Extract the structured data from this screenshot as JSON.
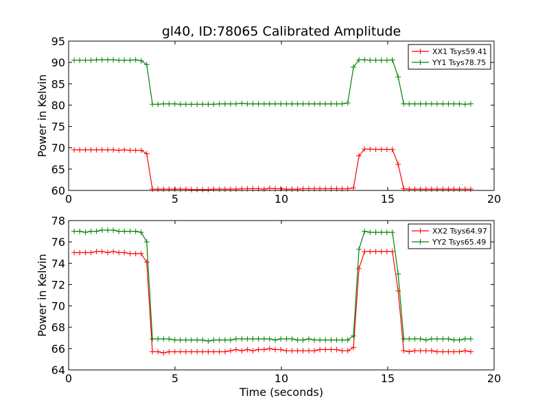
{
  "figure": {
    "title": "gl40, ID:78065 Calibrated Amplitude",
    "xlabel": "Time (seconds)"
  },
  "chart_data": [
    {
      "type": "line",
      "title": "gl40, ID:78065 Calibrated Amplitude",
      "xlabel": "",
      "ylabel": "Power in Kelvin",
      "xlim": [
        0,
        20
      ],
      "ylim": [
        60,
        95
      ],
      "xticks": [
        0,
        5,
        10,
        15,
        20
      ],
      "yticks": [
        60,
        65,
        70,
        75,
        80,
        85,
        90,
        95
      ],
      "grid": false,
      "legend_position": "top-right",
      "x": [
        0.26,
        0.52,
        0.79,
        1.05,
        1.31,
        1.57,
        1.84,
        2.1,
        2.36,
        2.62,
        2.89,
        3.15,
        3.41,
        3.67,
        3.94,
        4.2,
        4.46,
        4.72,
        4.99,
        5.25,
        5.51,
        5.77,
        6.04,
        6.3,
        6.56,
        6.82,
        7.09,
        7.35,
        7.61,
        7.87,
        8.14,
        8.4,
        8.66,
        8.92,
        9.19,
        9.45,
        9.71,
        9.97,
        10.24,
        10.5,
        10.76,
        11.02,
        11.29,
        11.55,
        11.81,
        12.07,
        12.34,
        12.6,
        12.86,
        13.12,
        13.39,
        13.65,
        13.91,
        14.17,
        14.44,
        14.7,
        14.96,
        15.22,
        15.49,
        15.75,
        16.01,
        16.27,
        16.54,
        16.8,
        17.06,
        17.32,
        17.59,
        17.85,
        18.11,
        18.37,
        18.64,
        18.9
      ],
      "series": [
        {
          "name": "XX1 Tsys59.41",
          "color": "#ff0000",
          "values": [
            69.5,
            69.5,
            69.5,
            69.5,
            69.5,
            69.5,
            69.5,
            69.5,
            69.4,
            69.5,
            69.4,
            69.4,
            69.4,
            68.6,
            60.3,
            60.3,
            60.3,
            60.3,
            60.3,
            60.3,
            60.3,
            60.2,
            60.2,
            60.2,
            60.2,
            60.3,
            60.3,
            60.3,
            60.3,
            60.3,
            60.4,
            60.4,
            60.4,
            60.4,
            60.3,
            60.5,
            60.4,
            60.4,
            60.3,
            60.3,
            60.3,
            60.4,
            60.4,
            60.4,
            60.4,
            60.4,
            60.4,
            60.4,
            60.4,
            60.4,
            60.6,
            68.1,
            69.7,
            69.7,
            69.6,
            69.6,
            69.6,
            69.6,
            66.1,
            60.4,
            60.3,
            60.3,
            60.3,
            60.3,
            60.3,
            60.3,
            60.3,
            60.3,
            60.3,
            60.3,
            60.3,
            60.3
          ]
        },
        {
          "name": "YY1 Tsys78.75",
          "color": "#008000",
          "values": [
            90.5,
            90.5,
            90.5,
            90.5,
            90.6,
            90.6,
            90.6,
            90.6,
            90.5,
            90.5,
            90.5,
            90.6,
            90.4,
            89.5,
            80.2,
            80.2,
            80.3,
            80.3,
            80.3,
            80.2,
            80.2,
            80.2,
            80.2,
            80.2,
            80.2,
            80.2,
            80.3,
            80.3,
            80.3,
            80.3,
            80.4,
            80.3,
            80.3,
            80.3,
            80.3,
            80.3,
            80.3,
            80.3,
            80.3,
            80.3,
            80.3,
            80.3,
            80.3,
            80.3,
            80.3,
            80.3,
            80.3,
            80.3,
            80.3,
            80.5,
            88.9,
            90.6,
            90.6,
            90.5,
            90.5,
            90.5,
            90.5,
            90.6,
            86.6,
            80.3,
            80.3,
            80.3,
            80.3,
            80.3,
            80.3,
            80.3,
            80.3,
            80.3,
            80.3,
            80.3,
            80.2,
            80.3
          ]
        }
      ]
    },
    {
      "type": "line",
      "title": "",
      "xlabel": "Time (seconds)",
      "ylabel": "Power in Kelvin",
      "xlim": [
        0,
        20
      ],
      "ylim": [
        64,
        78
      ],
      "xticks": [
        0,
        5,
        10,
        15,
        20
      ],
      "yticks": [
        64,
        66,
        68,
        70,
        72,
        74,
        76,
        78
      ],
      "grid": false,
      "legend_position": "top-right",
      "x": [
        0.26,
        0.52,
        0.79,
        1.05,
        1.31,
        1.57,
        1.84,
        2.1,
        2.36,
        2.62,
        2.89,
        3.15,
        3.41,
        3.67,
        3.94,
        4.2,
        4.46,
        4.72,
        4.99,
        5.25,
        5.51,
        5.77,
        6.04,
        6.3,
        6.56,
        6.82,
        7.09,
        7.35,
        7.61,
        7.87,
        8.14,
        8.4,
        8.66,
        8.92,
        9.19,
        9.45,
        9.71,
        9.97,
        10.24,
        10.5,
        10.76,
        11.02,
        11.29,
        11.55,
        11.81,
        12.07,
        12.34,
        12.6,
        12.86,
        13.12,
        13.39,
        13.65,
        13.91,
        14.17,
        14.44,
        14.7,
        14.96,
        15.22,
        15.49,
        15.75,
        16.01,
        16.27,
        16.54,
        16.8,
        17.06,
        17.32,
        17.59,
        17.85,
        18.11,
        18.37,
        18.64,
        18.9
      ],
      "series": [
        {
          "name": "XX2 Tsys64.97",
          "color": "#ff0000",
          "values": [
            75.0,
            75.0,
            75.0,
            75.0,
            75.1,
            75.1,
            75.0,
            75.1,
            75.0,
            75.0,
            74.9,
            74.9,
            74.9,
            74.1,
            65.7,
            65.7,
            65.6,
            65.7,
            65.7,
            65.7,
            65.7,
            65.7,
            65.7,
            65.7,
            65.7,
            65.7,
            65.7,
            65.7,
            65.8,
            65.9,
            65.8,
            65.9,
            65.8,
            65.9,
            65.9,
            66.0,
            65.9,
            65.9,
            65.8,
            65.8,
            65.8,
            65.8,
            65.8,
            65.8,
            65.9,
            65.9,
            65.9,
            65.9,
            65.8,
            65.8,
            66.1,
            73.5,
            75.1,
            75.1,
            75.1,
            75.1,
            75.1,
            75.1,
            71.4,
            65.8,
            65.7,
            65.8,
            65.8,
            65.8,
            65.8,
            65.7,
            65.7,
            65.7,
            65.7,
            65.7,
            65.8,
            65.7
          ]
        },
        {
          "name": "YY2 Tsys65.49",
          "color": "#008000",
          "values": [
            77.0,
            77.0,
            76.9,
            77.0,
            77.0,
            77.1,
            77.1,
            77.1,
            77.0,
            77.0,
            77.0,
            77.0,
            76.9,
            76.0,
            66.9,
            66.9,
            66.9,
            66.9,
            66.8,
            66.8,
            66.8,
            66.8,
            66.8,
            66.8,
            66.7,
            66.8,
            66.8,
            66.8,
            66.8,
            66.9,
            66.9,
            66.9,
            66.9,
            66.9,
            66.9,
            66.9,
            66.8,
            66.9,
            66.9,
            66.9,
            66.8,
            66.8,
            66.9,
            66.8,
            66.8,
            66.8,
            66.8,
            66.8,
            66.8,
            66.8,
            67.2,
            75.3,
            77.0,
            76.9,
            76.9,
            76.9,
            76.9,
            76.9,
            73.0,
            66.9,
            66.9,
            66.9,
            66.9,
            66.8,
            66.9,
            66.9,
            66.9,
            66.9,
            66.8,
            66.8,
            66.9,
            66.9
          ]
        }
      ]
    }
  ]
}
